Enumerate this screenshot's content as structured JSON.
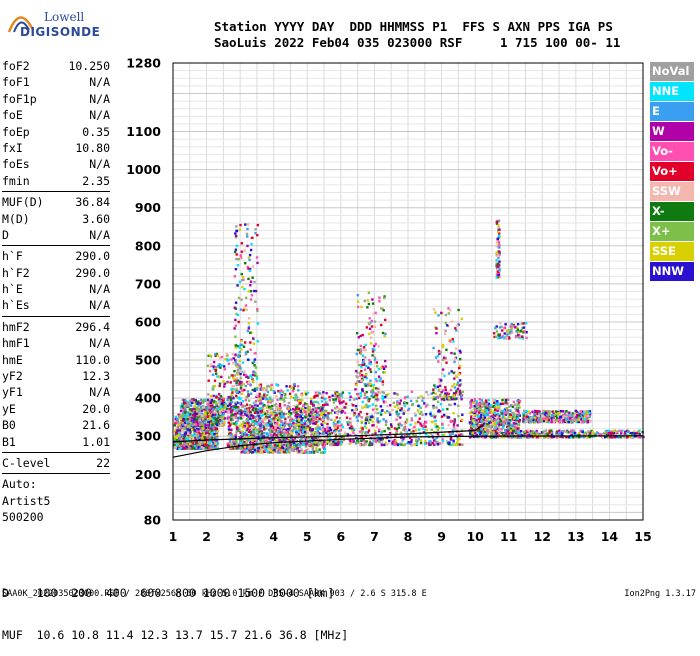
{
  "logo": {
    "line1": "Lowell",
    "line2": "DIGISONDE"
  },
  "header": {
    "line1": "Station YYYY DAY  DDD HHMMSS P1  FFS S AXN PPS IGA PS",
    "line2": "SaoLuis 2022 Feb04 035 023000 RSF     1 715 100 00- 11"
  },
  "params": [
    {
      "label": "foF2",
      "value": "10.250"
    },
    {
      "label": "foF1",
      "value": "N/A"
    },
    {
      "label": "foF1p",
      "value": "N/A"
    },
    {
      "label": "foE",
      "value": "N/A"
    },
    {
      "label": "foEp",
      "value": "0.35"
    },
    {
      "label": "fxI",
      "value": "10.80"
    },
    {
      "label": "foEs",
      "value": "N/A"
    },
    {
      "label": "fmin",
      "value": "2.35"
    },
    {
      "label": "MUF(D)",
      "value": "36.84",
      "sep": true
    },
    {
      "label": "M(D)",
      "value": "3.60"
    },
    {
      "label": "D",
      "value": "N/A"
    },
    {
      "label": "h`F",
      "value": "290.0",
      "sep": true
    },
    {
      "label": "h`F2",
      "value": "290.0"
    },
    {
      "label": "h`E",
      "value": "N/A"
    },
    {
      "label": "h`Es",
      "value": "N/A"
    },
    {
      "label": "hmF2",
      "value": "296.4",
      "sep": true
    },
    {
      "label": "hmF1",
      "value": "N/A"
    },
    {
      "label": "hmE",
      "value": "110.0"
    },
    {
      "label": "yF2",
      "value": "12.3"
    },
    {
      "label": "yF1",
      "value": "N/A"
    },
    {
      "label": "yE",
      "value": "20.0"
    },
    {
      "label": "B0",
      "value": "21.6"
    },
    {
      "label": "B1",
      "value": "1.01"
    },
    {
      "label": "C-level",
      "value": "22",
      "sep": true
    }
  ],
  "autoscale": [
    "Auto:",
    "Artist5",
    "500200"
  ],
  "legend": [
    {
      "label": "NoVal",
      "color": "#a0a0a0"
    },
    {
      "label": "NNE",
      "color": "#00e5ff"
    },
    {
      "label": "E",
      "color": "#3a9ff0"
    },
    {
      "label": "W",
      "color": "#b000a8"
    },
    {
      "label": "Vo-",
      "color": "#ff4fb0"
    },
    {
      "label": "Vo+",
      "color": "#e0002a"
    },
    {
      "label": "SSW",
      "color": "#f4b7b0"
    },
    {
      "label": "X-",
      "color": "#0f7a0f"
    },
    {
      "label": "X+",
      "color": "#7cc04a"
    },
    {
      "label": "SSE",
      "color": "#d8d000"
    },
    {
      "label": "NNW",
      "color": "#2a10d0"
    }
  ],
  "footer": {
    "line1": "D    100  200  400  600  800 1000 1500 3000 [km]",
    "line2": "MUF  10.6 10.8 11.4 12.3 13.7 15.7 21.6 36.8 [MHz]",
    "source": "SAA0K_2022035023000.RSF / 280fx256h 50 kHz 5.0 km / DPS-4 SAA0K 903 / 2.6 S 315.8 E",
    "version": "Ion2Png 1.3.17"
  },
  "chart_data": {
    "type": "scatter",
    "title": "",
    "xlabel": "",
    "ylabel": "",
    "xlim": [
      1,
      15
    ],
    "ylim": [
      80,
      1280
    ],
    "x_ticks": [
      "1",
      "2",
      "3",
      "4",
      "5",
      "6",
      "7",
      "8",
      "9",
      "10",
      "11",
      "12",
      "13",
      "14",
      "15"
    ],
    "y_ticks": [
      {
        "value": 80,
        "label": "80"
      },
      {
        "value": 200,
        "label": "200"
      },
      {
        "value": 300,
        "label": "300"
      },
      {
        "value": 400,
        "label": "400"
      },
      {
        "value": 500,
        "label": "500"
      },
      {
        "value": 600,
        "label": "600"
      },
      {
        "value": 700,
        "label": "700"
      },
      {
        "value": 800,
        "label": "800"
      },
      {
        "value": 900,
        "label": "900"
      },
      {
        "value": 1000,
        "label": "1000"
      },
      {
        "value": 1100,
        "label": "1100"
      },
      {
        "value": 1280,
        "label": "1280"
      }
    ],
    "grid": true,
    "traces": [
      {
        "name": "O-trace",
        "color": "#000000",
        "points": [
          [
            1.0,
            285
          ],
          [
            2.0,
            290
          ],
          [
            3.0,
            293
          ],
          [
            4.0,
            296
          ],
          [
            6.0,
            300
          ],
          [
            8.0,
            306
          ],
          [
            10.0,
            315
          ],
          [
            10.25,
            330
          ]
        ]
      },
      {
        "name": "Profile",
        "color": "#000000",
        "points": [
          [
            1.0,
            245
          ],
          [
            2.0,
            262
          ],
          [
            3.0,
            275
          ],
          [
            4.0,
            283
          ],
          [
            6.0,
            292
          ],
          [
            8.0,
            298
          ],
          [
            10.25,
            300
          ],
          [
            15.0,
            301
          ]
        ]
      }
    ],
    "echo_clusters": [
      {
        "x": [
          1.0,
          2.3
        ],
        "y": [
          270,
          360
        ],
        "w": 1.0
      },
      {
        "x": [
          1.2,
          2.5
        ],
        "y": [
          330,
          400
        ],
        "w": 0.6
      },
      {
        "x": [
          2.0,
          3.0
        ],
        "y": [
          350,
          520
        ],
        "w": 0.25
      },
      {
        "x": [
          2.6,
          4.7
        ],
        "y": [
          270,
          440
        ],
        "w": 0.9
      },
      {
        "x": [
          2.8,
          3.5
        ],
        "y": [
          440,
          860
        ],
        "w": 0.2
      },
      {
        "x": [
          3.0,
          5.5
        ],
        "y": [
          260,
          380
        ],
        "w": 0.7
      },
      {
        "x": [
          4.7,
          6.0
        ],
        "y": [
          280,
          420
        ],
        "w": 0.45
      },
      {
        "x": [
          5.8,
          9.6
        ],
        "y": [
          280,
          420
        ],
        "w": 0.65
      },
      {
        "x": [
          6.4,
          7.3
        ],
        "y": [
          400,
          680
        ],
        "w": 0.2
      },
      {
        "x": [
          8.7,
          9.6
        ],
        "y": [
          400,
          640
        ],
        "w": 0.15
      },
      {
        "x": [
          9.8,
          11.3
        ],
        "y": [
          300,
          400
        ],
        "w": 0.75
      },
      {
        "x": [
          10.5,
          11.5
        ],
        "y": [
          560,
          600
        ],
        "w": 0.1
      },
      {
        "x": [
          11.4,
          13.4
        ],
        "y": [
          340,
          370
        ],
        "w": 0.5
      },
      {
        "x": [
          11.0,
          15.0
        ],
        "y": [
          300,
          318
        ],
        "w": 0.45
      },
      {
        "x": [
          10.6,
          10.7
        ],
        "y": [
          720,
          880
        ],
        "w": 0.08
      }
    ]
  }
}
